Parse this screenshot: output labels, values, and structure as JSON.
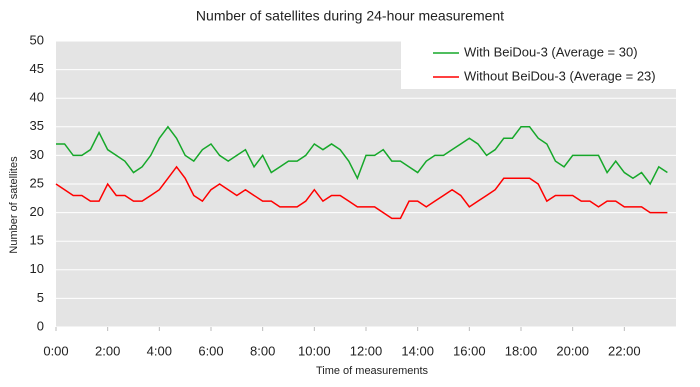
{
  "chart_data": {
    "type": "line",
    "title": "Number of satellites during 24-hour measurement",
    "xlabel": "Time of measurements",
    "ylabel": "Number of satellites",
    "x": [
      0,
      20,
      40,
      60,
      80,
      100,
      120,
      140,
      160,
      180,
      200,
      220,
      240,
      260,
      280,
      300,
      320,
      340,
      360,
      380,
      400,
      420,
      440,
      460,
      480,
      500,
      520,
      540,
      560,
      580,
      600,
      620,
      640,
      660,
      680,
      700,
      720,
      740,
      760,
      780,
      800,
      820,
      840,
      860,
      880,
      900,
      920,
      940,
      960,
      980,
      1000,
      1020,
      1040,
      1060,
      1080,
      1100,
      1120,
      1140,
      1160,
      1180,
      1200,
      1220,
      1240,
      1260,
      1280,
      1300,
      1320,
      1340,
      1360,
      1380,
      1400,
      1420
    ],
    "series": [
      {
        "name": "With BeiDou-3 (Average = 30)",
        "color": "#16a82a",
        "values": [
          32,
          32,
          30,
          30,
          31,
          34,
          31,
          30,
          29,
          27,
          28,
          30,
          33,
          35,
          33,
          30,
          29,
          31,
          32,
          30,
          29,
          30,
          31,
          28,
          30,
          27,
          28,
          29,
          29,
          30,
          32,
          31,
          32,
          31,
          29,
          26,
          30,
          30,
          31,
          29,
          29,
          28,
          27,
          29,
          30,
          30,
          31,
          32,
          33,
          32,
          30,
          31,
          33,
          33,
          35,
          35,
          33,
          32,
          29,
          28,
          30,
          30,
          30,
          30,
          27,
          29,
          27,
          26,
          27,
          25,
          28,
          27
        ]
      },
      {
        "name": "Without BeiDou-3 (Average = 23)",
        "color": "#ff0000",
        "values": [
          25,
          24,
          23,
          23,
          22,
          22,
          25,
          23,
          23,
          22,
          22,
          23,
          24,
          26,
          28,
          26,
          23,
          22,
          24,
          25,
          24,
          23,
          24,
          23,
          22,
          22,
          21,
          21,
          21,
          22,
          24,
          22,
          23,
          23,
          22,
          21,
          21,
          21,
          20,
          19,
          19,
          22,
          22,
          21,
          22,
          23,
          24,
          23,
          21,
          22,
          23,
          24,
          26,
          26,
          26,
          26,
          25,
          22,
          23,
          23,
          23,
          22,
          22,
          21,
          22,
          22,
          21,
          21,
          21,
          20,
          20,
          20
        ]
      }
    ],
    "xlim": [
      0,
      1440
    ],
    "xticks": [
      {
        "value": 0,
        "label": "0:00"
      },
      {
        "value": 120,
        "label": "2:00"
      },
      {
        "value": 240,
        "label": "4:00"
      },
      {
        "value": 360,
        "label": "6:00"
      },
      {
        "value": 480,
        "label": "8:00"
      },
      {
        "value": 600,
        "label": "10:00"
      },
      {
        "value": 720,
        "label": "12:00"
      },
      {
        "value": 840,
        "label": "14:00"
      },
      {
        "value": 960,
        "label": "16:00"
      },
      {
        "value": 1080,
        "label": "18:00"
      },
      {
        "value": 1200,
        "label": "20:00"
      },
      {
        "value": 1320,
        "label": "22:00"
      }
    ],
    "ylim": [
      0,
      50
    ],
    "yticks": [
      0,
      5,
      10,
      15,
      20,
      25,
      30,
      35,
      40,
      45,
      50
    ],
    "grid": true,
    "legend": "upper-right"
  }
}
